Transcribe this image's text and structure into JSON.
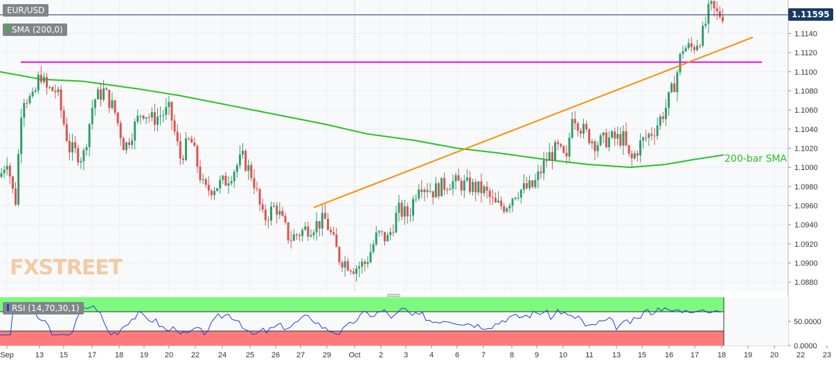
{
  "chart_data": {
    "type": "candlestick",
    "symbol": "EUR/USD",
    "indicator_label": "SMA (200,0)",
    "last_price": "1.11595",
    "ylim": [
      1.087,
      1.1175
    ],
    "y_ticks": [
      "1.1140",
      "1.1120",
      "1.1100",
      "1.1080",
      "1.1060",
      "1.1040",
      "1.1020",
      "1.1000",
      "1.0980",
      "1.0960",
      "1.0940",
      "1.0920",
      "1.0900",
      "1.0880"
    ],
    "x_ticks": [
      "Sep",
      "13",
      "15",
      "17",
      "18",
      "19",
      "20",
      "22",
      "24",
      "25",
      "26",
      "27",
      "29",
      "Oct",
      "2",
      "3",
      "4",
      "6",
      "7",
      "8",
      "9",
      "10",
      "11",
      "13",
      "15",
      "16",
      "17",
      "18",
      "19",
      "20",
      "22",
      "23"
    ],
    "resistance_level": 1.111,
    "sma_annotation": "200-bar SMA",
    "rsi": {
      "label": "RSI (14,70,30,1)",
      "ylim": [
        0,
        100
      ],
      "y_ticks": [
        "50.0000",
        "0.0000"
      ],
      "overbought": 70,
      "oversold": 30
    },
    "watermark": "FXSTREET",
    "colors": {
      "up": "#2e9e69",
      "down": "#d9534f",
      "sma": "#22c422",
      "trend": "#ff8c00",
      "resistance": "#ff00ff",
      "rsi_line": "#1b3fd9",
      "overbought_zone": "#7dfa7d",
      "oversold_zone": "#ff7b7b"
    }
  }
}
